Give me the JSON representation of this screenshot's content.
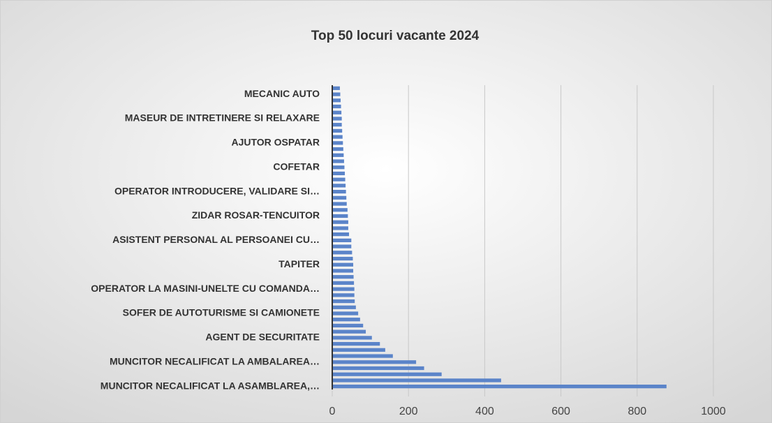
{
  "chart_data": {
    "type": "bar",
    "orientation": "horizontal",
    "title": "Top 50 locuri vacante 2024",
    "categories": [
      "MUNCITOR NECALIFICAT LA ASAMBLAREA,…",
      null,
      null,
      null,
      "MUNCITOR NECALIFICAT LA AMBALAREA…",
      null,
      null,
      null,
      "AGENT DE SECURITATE",
      null,
      null,
      null,
      "SOFER DE AUTOTURISME SI CAMIONETE",
      null,
      null,
      null,
      "OPERATOR LA MASINI-UNELTE CU COMANDA…",
      null,
      null,
      null,
      "TAPITER",
      null,
      null,
      null,
      "ASISTENT PERSONAL AL PERSOANEI CU…",
      null,
      null,
      null,
      "ZIDAR ROSAR-TENCUITOR",
      null,
      null,
      null,
      "OPERATOR INTRODUCERE, VALIDARE SI…",
      null,
      null,
      null,
      "COFETAR",
      null,
      null,
      null,
      "AJUTOR OSPATAR",
      null,
      null,
      null,
      "MASEUR DE INTRETINERE SI RELAXARE",
      null,
      null,
      null,
      "MECANIC AUTO",
      null
    ],
    "values": [
      877,
      443,
      287,
      241,
      220,
      159,
      139,
      125,
      104,
      88,
      81,
      73,
      68,
      62,
      59,
      58,
      58,
      57,
      56,
      55,
      55,
      54,
      52,
      50,
      50,
      44,
      42,
      42,
      41,
      40,
      38,
      37,
      36,
      35,
      34,
      33,
      32,
      31,
      30,
      29,
      28,
      27,
      26,
      25,
      25,
      24,
      23,
      22,
      21,
      20
    ],
    "color": "#5b84c9",
    "xlim": [
      0,
      1000
    ],
    "xticks": [
      0,
      200,
      400,
      600,
      800,
      1000
    ],
    "grid": true
  }
}
